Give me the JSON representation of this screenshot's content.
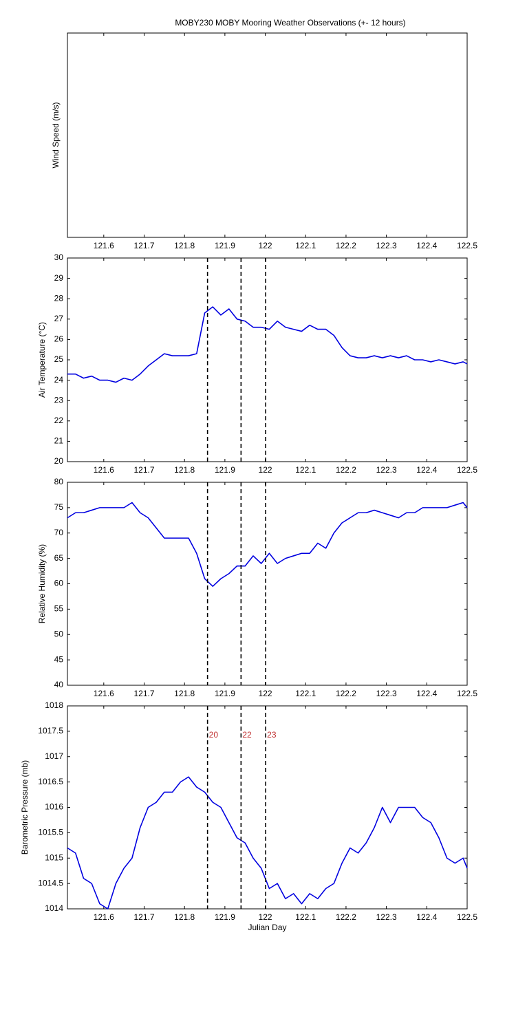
{
  "chart_data": [
    {
      "type": "line",
      "title": "MOBY230 MOBY Mooring Weather Observations (+- 12 hours)",
      "ylabel": "Wind Speed (m/s)",
      "xlim": [
        121.51,
        122.5
      ],
      "xticks": [
        121.6,
        121.7,
        121.8,
        121.9,
        122,
        122.1,
        122.2,
        122.3,
        122.4,
        122.5
      ]
    },
    {
      "type": "line",
      "ylabel": "Air Temperature (°C)",
      "xlim": [
        121.51,
        122.5
      ],
      "xticks": [
        121.6,
        121.7,
        121.8,
        121.9,
        122,
        122.1,
        122.2,
        122.3,
        122.4,
        122.5
      ],
      "ylim": [
        20,
        30
      ],
      "yticks": [
        20,
        21,
        22,
        23,
        24,
        25,
        26,
        27,
        28,
        29,
        30
      ],
      "color": "#0000e0",
      "x": [
        121.51,
        121.53,
        121.55,
        121.57,
        121.59,
        121.61,
        121.63,
        121.65,
        121.67,
        121.69,
        121.71,
        121.73,
        121.75,
        121.77,
        121.79,
        121.81,
        121.83,
        121.85,
        121.87,
        121.89,
        121.91,
        121.93,
        121.95,
        121.97,
        121.99,
        122.01,
        122.03,
        122.05,
        122.07,
        122.09,
        122.11,
        122.13,
        122.15,
        122.17,
        122.19,
        122.21,
        122.23,
        122.25,
        122.27,
        122.29,
        122.31,
        122.33,
        122.35,
        122.37,
        122.39,
        122.41,
        122.43,
        122.45,
        122.47,
        122.49,
        122.5
      ],
      "values": [
        24.3,
        24.3,
        24.1,
        24.2,
        24.0,
        24.0,
        23.9,
        24.1,
        24.0,
        24.3,
        24.7,
        25.0,
        25.3,
        25.2,
        25.2,
        25.2,
        25.3,
        27.3,
        27.6,
        27.2,
        27.5,
        27.0,
        26.9,
        26.6,
        26.6,
        26.5,
        26.9,
        26.6,
        26.5,
        26.4,
        26.7,
        26.5,
        26.5,
        26.2,
        25.6,
        25.2,
        25.1,
        25.1,
        25.2,
        25.1,
        25.2,
        25.1,
        25.2,
        25.0,
        25.0,
        24.9,
        25.0,
        24.9,
        24.8,
        24.9,
        24.8
      ],
      "vlines": [
        121.857,
        121.94,
        122.001
      ]
    },
    {
      "type": "line",
      "ylabel": "Relative Humidity (%)",
      "xlim": [
        121.51,
        122.5
      ],
      "xticks": [
        121.6,
        121.7,
        121.8,
        121.9,
        122,
        122.1,
        122.2,
        122.3,
        122.4,
        122.5
      ],
      "ylim": [
        40,
        80
      ],
      "yticks": [
        40,
        45,
        50,
        55,
        60,
        65,
        70,
        75,
        80
      ],
      "color": "#0000e0",
      "x": [
        121.51,
        121.53,
        121.55,
        121.57,
        121.59,
        121.61,
        121.63,
        121.65,
        121.67,
        121.69,
        121.71,
        121.73,
        121.75,
        121.77,
        121.79,
        121.81,
        121.83,
        121.85,
        121.87,
        121.89,
        121.91,
        121.93,
        121.95,
        121.97,
        121.99,
        122.01,
        122.03,
        122.05,
        122.07,
        122.09,
        122.11,
        122.13,
        122.15,
        122.17,
        122.19,
        122.21,
        122.23,
        122.25,
        122.27,
        122.29,
        122.31,
        122.33,
        122.35,
        122.37,
        122.39,
        122.41,
        122.43,
        122.45,
        122.47,
        122.49,
        122.5
      ],
      "values": [
        73,
        74,
        74,
        74.5,
        75,
        75,
        75,
        75,
        76,
        74,
        73,
        71,
        69,
        69,
        69,
        69,
        66,
        61,
        59.5,
        61,
        62,
        63.5,
        63.5,
        65.5,
        64,
        66,
        64,
        65,
        65.5,
        66,
        66,
        68,
        67,
        70,
        72,
        73,
        74,
        74,
        74.5,
        74,
        73.5,
        73,
        74,
        74,
        75,
        75,
        75,
        75,
        75.5,
        76,
        75
      ],
      "vlines": [
        121.857,
        121.94,
        122.001
      ]
    },
    {
      "type": "line",
      "ylabel": "Barometric Pressure (mb)",
      "xlabel": "Julian Day",
      "xlim": [
        121.51,
        122.5
      ],
      "xticks": [
        121.6,
        121.7,
        121.8,
        121.9,
        122,
        122.1,
        122.2,
        122.3,
        122.4,
        122.5
      ],
      "ylim": [
        1014,
        1018
      ],
      "yticks": [
        1014,
        1014.5,
        1015,
        1015.5,
        1016,
        1016.5,
        1017,
        1017.5,
        1018
      ],
      "color": "#0000e0",
      "x": [
        121.51,
        121.53,
        121.55,
        121.57,
        121.59,
        121.61,
        121.63,
        121.65,
        121.67,
        121.69,
        121.71,
        121.73,
        121.75,
        121.77,
        121.79,
        121.81,
        121.83,
        121.85,
        121.87,
        121.89,
        121.91,
        121.93,
        121.95,
        121.97,
        121.99,
        122.01,
        122.03,
        122.05,
        122.07,
        122.09,
        122.11,
        122.13,
        122.15,
        122.17,
        122.19,
        122.21,
        122.23,
        122.25,
        122.27,
        122.29,
        122.31,
        122.33,
        122.35,
        122.37,
        122.39,
        122.41,
        122.43,
        122.45,
        122.47,
        122.49,
        122.5
      ],
      "values": [
        1015.2,
        1015.1,
        1014.6,
        1014.5,
        1014.1,
        1014.0,
        1014.5,
        1014.8,
        1015.0,
        1015.6,
        1016.0,
        1016.1,
        1016.3,
        1016.3,
        1016.5,
        1016.6,
        1016.4,
        1016.3,
        1016.1,
        1016.0,
        1015.7,
        1015.4,
        1015.3,
        1015.0,
        1014.8,
        1014.4,
        1014.5,
        1014.2,
        1014.3,
        1014.1,
        1014.3,
        1014.2,
        1014.4,
        1014.5,
        1014.9,
        1015.2,
        1015.1,
        1015.3,
        1015.6,
        1016.0,
        1015.7,
        1016.0,
        1016.0,
        1016.0,
        1015.8,
        1015.7,
        1015.4,
        1015.0,
        1014.9,
        1015.0,
        1014.8
      ],
      "vlines": [
        121.857,
        121.94,
        122.001
      ],
      "annotations": [
        {
          "text": "20",
          "x": 121.857,
          "y": 1017.42,
          "color": "#c03030"
        },
        {
          "text": "22",
          "x": 121.94,
          "y": 1017.42,
          "color": "#c03030"
        },
        {
          "text": "23",
          "x": 122.001,
          "y": 1017.42,
          "color": "#c03030"
        }
      ]
    }
  ]
}
